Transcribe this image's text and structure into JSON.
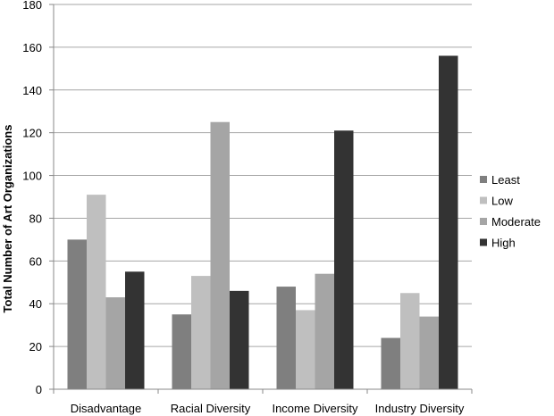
{
  "chart_data": {
    "type": "bar",
    "xlabel": "",
    "ylabel": "Total Number of Art Organizations",
    "ylim": [
      0,
      180
    ],
    "yticks": [
      0,
      20,
      40,
      60,
      80,
      100,
      120,
      140,
      160,
      180
    ],
    "grid": true,
    "legend_position": "right",
    "categories": [
      "Disadvantage",
      "Racial Diversity",
      "Income Diversity",
      "Industry Diversity"
    ],
    "series": [
      {
        "name": "Least",
        "color": "#7f7f7f",
        "values": [
          70,
          35,
          48,
          24
        ]
      },
      {
        "name": "Low",
        "color": "#bfbfbf",
        "values": [
          91,
          53,
          37,
          45
        ]
      },
      {
        "name": "Moderate",
        "color": "#a5a5a5",
        "values": [
          43,
          125,
          54,
          34
        ]
      },
      {
        "name": "High",
        "color": "#333333",
        "values": [
          55,
          46,
          121,
          156
        ]
      }
    ]
  }
}
